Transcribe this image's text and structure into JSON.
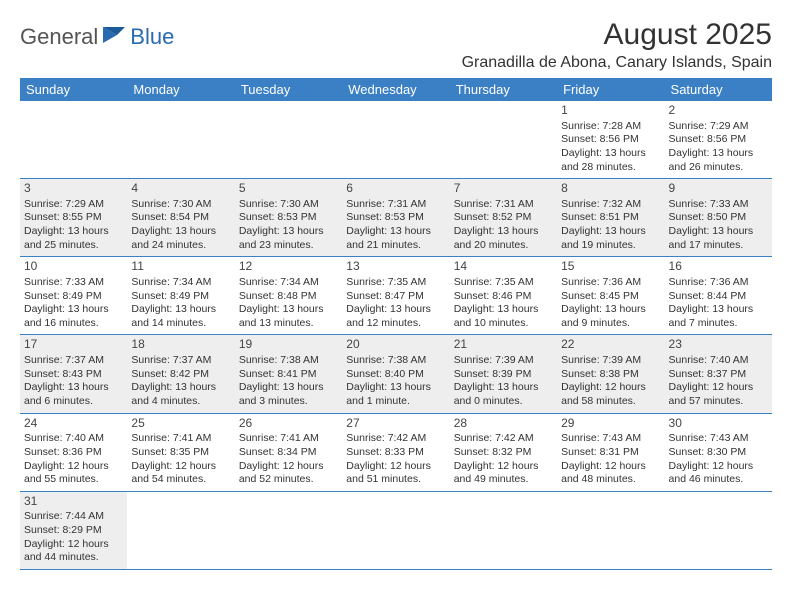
{
  "logo": {
    "part1": "General",
    "part2": "Blue"
  },
  "title": "August 2025",
  "location": "Granadilla de Abona, Canary Islands, Spain",
  "colors": {
    "header_bg": "#3b7fc4",
    "header_text": "#ffffff",
    "shaded_bg": "#eeeeee",
    "border": "#3b7fc4",
    "logo_gray": "#555555",
    "logo_blue": "#2a6bb0"
  },
  "weekdays": [
    "Sunday",
    "Monday",
    "Tuesday",
    "Wednesday",
    "Thursday",
    "Friday",
    "Saturday"
  ],
  "weeks": [
    [
      null,
      null,
      null,
      null,
      null,
      {
        "n": "1",
        "sr": "Sunrise: 7:28 AM",
        "ss": "Sunset: 8:56 PM",
        "d1": "Daylight: 13 hours",
        "d2": "and 28 minutes."
      },
      {
        "n": "2",
        "sr": "Sunrise: 7:29 AM",
        "ss": "Sunset: 8:56 PM",
        "d1": "Daylight: 13 hours",
        "d2": "and 26 minutes."
      }
    ],
    [
      {
        "n": "3",
        "sr": "Sunrise: 7:29 AM",
        "ss": "Sunset: 8:55 PM",
        "d1": "Daylight: 13 hours",
        "d2": "and 25 minutes.",
        "sh": true
      },
      {
        "n": "4",
        "sr": "Sunrise: 7:30 AM",
        "ss": "Sunset: 8:54 PM",
        "d1": "Daylight: 13 hours",
        "d2": "and 24 minutes.",
        "sh": true
      },
      {
        "n": "5",
        "sr": "Sunrise: 7:30 AM",
        "ss": "Sunset: 8:53 PM",
        "d1": "Daylight: 13 hours",
        "d2": "and 23 minutes.",
        "sh": true
      },
      {
        "n": "6",
        "sr": "Sunrise: 7:31 AM",
        "ss": "Sunset: 8:53 PM",
        "d1": "Daylight: 13 hours",
        "d2": "and 21 minutes.",
        "sh": true
      },
      {
        "n": "7",
        "sr": "Sunrise: 7:31 AM",
        "ss": "Sunset: 8:52 PM",
        "d1": "Daylight: 13 hours",
        "d2": "and 20 minutes.",
        "sh": true
      },
      {
        "n": "8",
        "sr": "Sunrise: 7:32 AM",
        "ss": "Sunset: 8:51 PM",
        "d1": "Daylight: 13 hours",
        "d2": "and 19 minutes.",
        "sh": true
      },
      {
        "n": "9",
        "sr": "Sunrise: 7:33 AM",
        "ss": "Sunset: 8:50 PM",
        "d1": "Daylight: 13 hours",
        "d2": "and 17 minutes.",
        "sh": true
      }
    ],
    [
      {
        "n": "10",
        "sr": "Sunrise: 7:33 AM",
        "ss": "Sunset: 8:49 PM",
        "d1": "Daylight: 13 hours",
        "d2": "and 16 minutes."
      },
      {
        "n": "11",
        "sr": "Sunrise: 7:34 AM",
        "ss": "Sunset: 8:49 PM",
        "d1": "Daylight: 13 hours",
        "d2": "and 14 minutes."
      },
      {
        "n": "12",
        "sr": "Sunrise: 7:34 AM",
        "ss": "Sunset: 8:48 PM",
        "d1": "Daylight: 13 hours",
        "d2": "and 13 minutes."
      },
      {
        "n": "13",
        "sr": "Sunrise: 7:35 AM",
        "ss": "Sunset: 8:47 PM",
        "d1": "Daylight: 13 hours",
        "d2": "and 12 minutes."
      },
      {
        "n": "14",
        "sr": "Sunrise: 7:35 AM",
        "ss": "Sunset: 8:46 PM",
        "d1": "Daylight: 13 hours",
        "d2": "and 10 minutes."
      },
      {
        "n": "15",
        "sr": "Sunrise: 7:36 AM",
        "ss": "Sunset: 8:45 PM",
        "d1": "Daylight: 13 hours",
        "d2": "and 9 minutes."
      },
      {
        "n": "16",
        "sr": "Sunrise: 7:36 AM",
        "ss": "Sunset: 8:44 PM",
        "d1": "Daylight: 13 hours",
        "d2": "and 7 minutes."
      }
    ],
    [
      {
        "n": "17",
        "sr": "Sunrise: 7:37 AM",
        "ss": "Sunset: 8:43 PM",
        "d1": "Daylight: 13 hours",
        "d2": "and 6 minutes.",
        "sh": true
      },
      {
        "n": "18",
        "sr": "Sunrise: 7:37 AM",
        "ss": "Sunset: 8:42 PM",
        "d1": "Daylight: 13 hours",
        "d2": "and 4 minutes.",
        "sh": true
      },
      {
        "n": "19",
        "sr": "Sunrise: 7:38 AM",
        "ss": "Sunset: 8:41 PM",
        "d1": "Daylight: 13 hours",
        "d2": "and 3 minutes.",
        "sh": true
      },
      {
        "n": "20",
        "sr": "Sunrise: 7:38 AM",
        "ss": "Sunset: 8:40 PM",
        "d1": "Daylight: 13 hours",
        "d2": "and 1 minute.",
        "sh": true
      },
      {
        "n": "21",
        "sr": "Sunrise: 7:39 AM",
        "ss": "Sunset: 8:39 PM",
        "d1": "Daylight: 13 hours",
        "d2": "and 0 minutes.",
        "sh": true
      },
      {
        "n": "22",
        "sr": "Sunrise: 7:39 AM",
        "ss": "Sunset: 8:38 PM",
        "d1": "Daylight: 12 hours",
        "d2": "and 58 minutes.",
        "sh": true
      },
      {
        "n": "23",
        "sr": "Sunrise: 7:40 AM",
        "ss": "Sunset: 8:37 PM",
        "d1": "Daylight: 12 hours",
        "d2": "and 57 minutes.",
        "sh": true
      }
    ],
    [
      {
        "n": "24",
        "sr": "Sunrise: 7:40 AM",
        "ss": "Sunset: 8:36 PM",
        "d1": "Daylight: 12 hours",
        "d2": "and 55 minutes."
      },
      {
        "n": "25",
        "sr": "Sunrise: 7:41 AM",
        "ss": "Sunset: 8:35 PM",
        "d1": "Daylight: 12 hours",
        "d2": "and 54 minutes."
      },
      {
        "n": "26",
        "sr": "Sunrise: 7:41 AM",
        "ss": "Sunset: 8:34 PM",
        "d1": "Daylight: 12 hours",
        "d2": "and 52 minutes."
      },
      {
        "n": "27",
        "sr": "Sunrise: 7:42 AM",
        "ss": "Sunset: 8:33 PM",
        "d1": "Daylight: 12 hours",
        "d2": "and 51 minutes."
      },
      {
        "n": "28",
        "sr": "Sunrise: 7:42 AM",
        "ss": "Sunset: 8:32 PM",
        "d1": "Daylight: 12 hours",
        "d2": "and 49 minutes."
      },
      {
        "n": "29",
        "sr": "Sunrise: 7:43 AM",
        "ss": "Sunset: 8:31 PM",
        "d1": "Daylight: 12 hours",
        "d2": "and 48 minutes."
      },
      {
        "n": "30",
        "sr": "Sunrise: 7:43 AM",
        "ss": "Sunset: 8:30 PM",
        "d1": "Daylight: 12 hours",
        "d2": "and 46 minutes."
      }
    ],
    [
      {
        "n": "31",
        "sr": "Sunrise: 7:44 AM",
        "ss": "Sunset: 8:29 PM",
        "d1": "Daylight: 12 hours",
        "d2": "and 44 minutes.",
        "sh": true
      },
      null,
      null,
      null,
      null,
      null,
      null
    ]
  ]
}
